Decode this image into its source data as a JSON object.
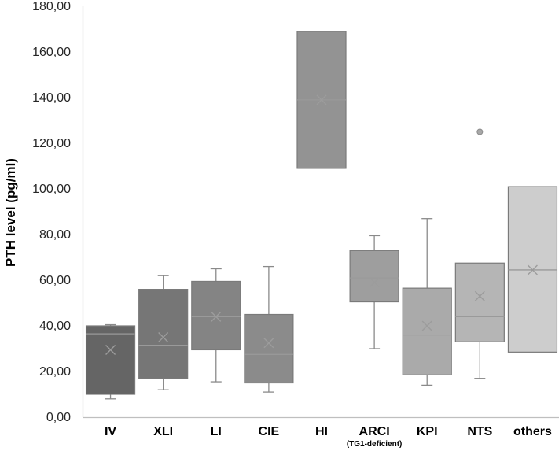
{
  "chart_data": {
    "type": "box",
    "title": "",
    "xlabel": "",
    "ylabel": "PTH level (pg/ml)",
    "ylim": [
      0,
      180
    ],
    "y_ticks": [
      "0,00",
      "20,00",
      "40,00",
      "60,00",
      "80,00",
      "100,00",
      "120,00",
      "140,00",
      "160,00",
      "180,00"
    ],
    "categories": [
      {
        "label": "IV",
        "sublabel": "",
        "color": "#656565",
        "whisker_low": 8,
        "q1": 10,
        "median": 36.5,
        "q3": 40,
        "whisker_high": 40.5,
        "mean": 29.5,
        "outliers": []
      },
      {
        "label": "XLI",
        "sublabel": "",
        "color": "#767676",
        "whisker_low": 12,
        "q1": 17,
        "median": 31.5,
        "q3": 56,
        "whisker_high": 62,
        "mean": 35,
        "outliers": []
      },
      {
        "label": "LI",
        "sublabel": "",
        "color": "#848484",
        "whisker_low": 15.5,
        "q1": 29.5,
        "median": 44,
        "q3": 59.5,
        "whisker_high": 65,
        "mean": 44,
        "outliers": []
      },
      {
        "label": "CIE",
        "sublabel": "",
        "color": "#8b8b8b",
        "whisker_low": 11,
        "q1": 15,
        "median": 27.5,
        "q3": 45,
        "whisker_high": 66,
        "mean": 32.5,
        "outliers": []
      },
      {
        "label": "HI",
        "sublabel": "",
        "color": "#939393",
        "whisker_low": 109,
        "q1": 109,
        "median": 139,
        "q3": 169,
        "whisker_high": 169,
        "mean": 139,
        "outliers": []
      },
      {
        "label": "ARCI",
        "sublabel": "(TG1-deficient)",
        "color": "#9e9e9e",
        "whisker_low": 30,
        "q1": 50.5,
        "median": 61,
        "q3": 73,
        "whisker_high": 79.5,
        "mean": 59,
        "outliers": []
      },
      {
        "label": "KPI",
        "sublabel": "",
        "color": "#aaaaaa",
        "whisker_low": 14,
        "q1": 18.5,
        "median": 36,
        "q3": 56.5,
        "whisker_high": 87,
        "mean": 40,
        "outliers": []
      },
      {
        "label": "NTS",
        "sublabel": "",
        "color": "#b5b5b5",
        "whisker_low": 17,
        "q1": 33,
        "median": 44,
        "q3": 67.5,
        "whisker_high": 67.5,
        "mean": 53,
        "outliers": [
          125
        ]
      },
      {
        "label": "others",
        "sublabel": "",
        "color": "#cdcdcd",
        "whisker_low": 28.5,
        "q1": 28.5,
        "median": 64.5,
        "q3": 101,
        "whisker_high": 101,
        "mean": 64.5,
        "outliers": []
      }
    ]
  }
}
